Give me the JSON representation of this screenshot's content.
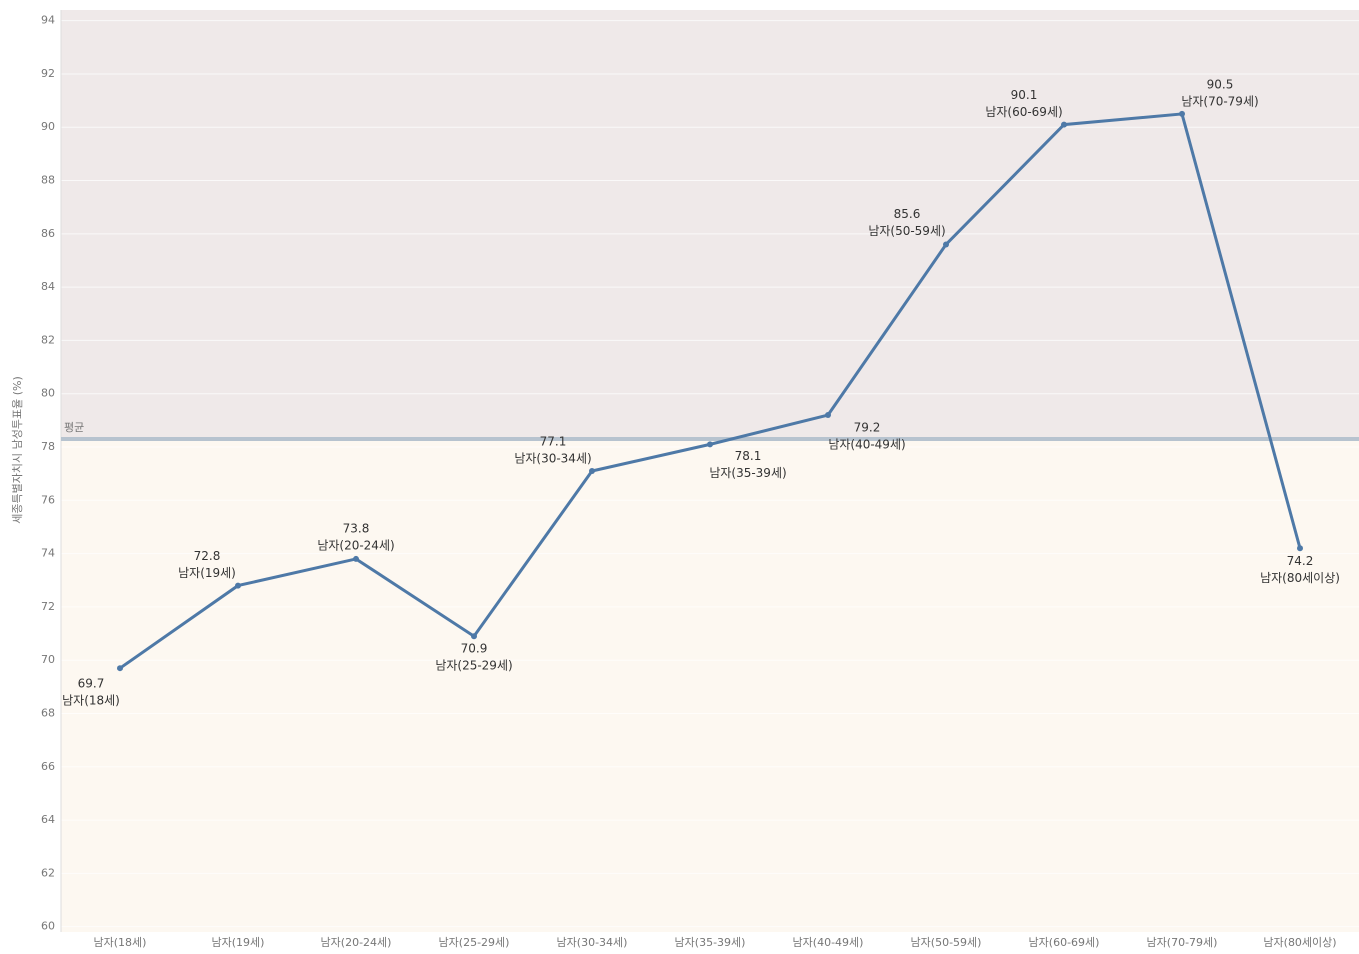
{
  "chart_data": {
    "type": "line",
    "y_label": "세종특별자치시 남성투표율 (%)",
    "categories": [
      "남자(18세)",
      "남자(19세)",
      "남자(20-24세)",
      "남자(25-29세)",
      "남자(30-34세)",
      "남자(35-39세)",
      "남자(40-49세)",
      "남자(50-59세)",
      "남자(60-69세)",
      "남자(70-79세)",
      "남자(80세이상)"
    ],
    "series": [
      {
        "name": "남자",
        "color": "#4e79a7",
        "values": [
          69.7,
          72.8,
          73.8,
          70.9,
          77.1,
          78.1,
          79.2,
          85.6,
          90.1,
          90.5,
          74.2
        ]
      }
    ],
    "reference_line": {
      "label": "평균",
      "value": 78.3
    },
    "ylim": [
      59.8,
      94.4
    ],
    "yticks": [
      60,
      62,
      64,
      66,
      68,
      70,
      72,
      74,
      76,
      78,
      80,
      82,
      84,
      86,
      88,
      90,
      92,
      94
    ],
    "grid": true
  }
}
